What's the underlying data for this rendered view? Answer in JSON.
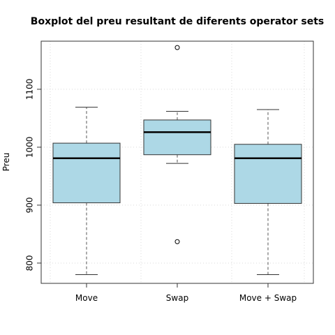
{
  "chart_data": {
    "type": "boxplot",
    "title": "Boxplot del preu resultant de diferents operator sets",
    "xlabel": "",
    "ylabel": "Preu",
    "ylim": [
      765,
      1183
    ],
    "yticks": [
      800,
      900,
      1000,
      1100
    ],
    "grid": true,
    "colors": {
      "box_fill": "#add8e6",
      "box_stroke": "#333333",
      "median": "#000000",
      "grid": "#d9d9d9"
    },
    "categories": [
      "Move",
      "Swap",
      "Move + Swap"
    ],
    "boxes": [
      {
        "name": "Move",
        "whisker_low": 780,
        "q1": 904,
        "median": 981,
        "q3": 1007,
        "whisker_high": 1069,
        "outliers": []
      },
      {
        "name": "Swap",
        "whisker_low": 972,
        "q1": 987,
        "median": 1026,
        "q3": 1047,
        "whisker_high": 1062,
        "outliers": [
          1172,
          837
        ]
      },
      {
        "name": "Move + Swap",
        "whisker_low": 780,
        "q1": 903,
        "median": 981,
        "q3": 1005,
        "whisker_high": 1065,
        "outliers": []
      }
    ]
  }
}
